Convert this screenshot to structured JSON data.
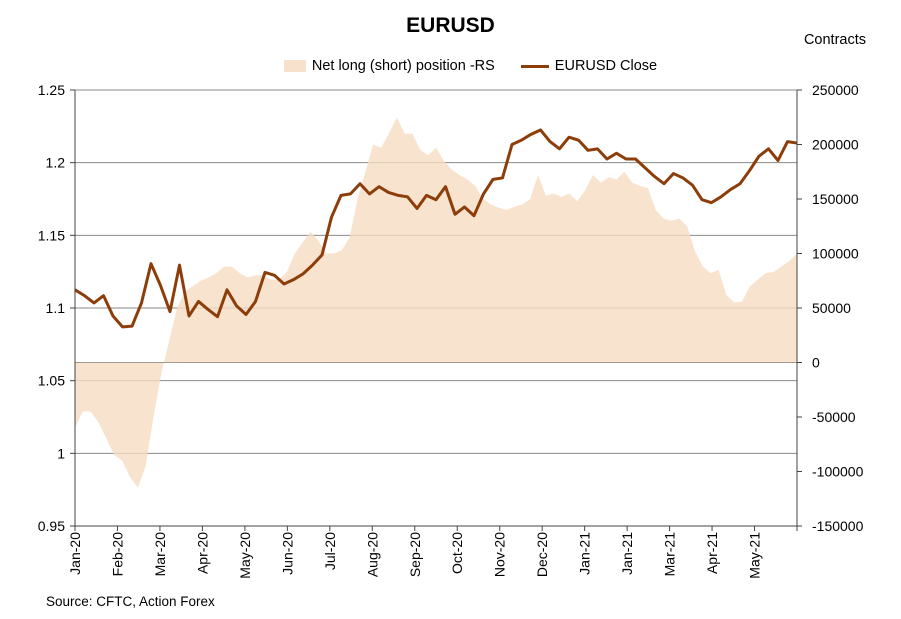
{
  "chart_data": {
    "type": "line",
    "title": "EURUSD",
    "right_axis_title": "Contracts",
    "source": "Source: CFTC, Action Forex",
    "legend_position": "top-center",
    "y_left": {
      "min": 0.95,
      "max": 1.25,
      "ticks": [
        "1.25",
        "1.2",
        "1.15",
        "1.1",
        "1.05",
        "1",
        "0.95"
      ]
    },
    "y_right": {
      "min": -150000,
      "max": 250000,
      "ticks": [
        "250000",
        "200000",
        "150000",
        "100000",
        "50000",
        "0",
        "-50000",
        "-100000",
        "-150000"
      ]
    },
    "x_tick_labels": [
      "Jan-20",
      "Feb-20",
      "Mar-20",
      "Apr-20",
      "May-20",
      "Jun-20",
      "Jul-20",
      "Aug-20",
      "Sep-20",
      "Oct-20",
      "Nov-20",
      "Dec-20",
      "Jan-21",
      "Jan-21",
      "Mar-21",
      "Apr-21",
      "May-21"
    ],
    "series": [
      {
        "name": "Net long (short) position -RS",
        "kind": "area",
        "axis": "right",
        "color": "#f6dcc3",
        "values": [
          -60000,
          -45000,
          -45000,
          -55000,
          -70000,
          -85000,
          -90000,
          -105000,
          -115000,
          -95000,
          -50000,
          -10000,
          20000,
          50000,
          65000,
          70000,
          75000,
          78000,
          82000,
          88000,
          88000,
          82000,
          78000,
          80000,
          80000,
          76000,
          76000,
          83000,
          100000,
          110000,
          120000,
          112000,
          100000,
          100000,
          103000,
          115000,
          150000,
          175000,
          200000,
          197000,
          210000,
          225000,
          210000,
          210000,
          195000,
          190000,
          197000,
          185000,
          177000,
          172000,
          168000,
          162000,
          150000,
          145000,
          142000,
          140000,
          143000,
          145000,
          150000,
          172000,
          153000,
          155000,
          152000,
          155000,
          148000,
          158000,
          172000,
          165000,
          170000,
          168000,
          175000,
          165000,
          162000,
          160000,
          140000,
          132000,
          130000,
          132000,
          125000,
          102000,
          88000,
          82000,
          85000,
          62000,
          55000,
          56000,
          70000,
          76000,
          82000,
          83000,
          88000,
          93000,
          100000
        ]
      },
      {
        "name": "EURUSD Close",
        "kind": "line",
        "axis": "left",
        "color": "#8c3d0a",
        "values": [
          1.1125,
          1.1085,
          1.1035,
          1.1085,
          1.0945,
          1.087,
          1.0875,
          1.1035,
          1.1305,
          1.1155,
          1.0975,
          1.1295,
          1.0945,
          1.1045,
          1.099,
          1.094,
          1.1125,
          1.1015,
          1.0955,
          1.1045,
          1.1245,
          1.1225,
          1.1165,
          1.1195,
          1.1235,
          1.1295,
          1.1365,
          1.1625,
          1.1775,
          1.1785,
          1.1855,
          1.1785,
          1.1835,
          1.1795,
          1.1775,
          1.1765,
          1.1685,
          1.1775,
          1.1745,
          1.1835,
          1.1645,
          1.1695,
          1.1635,
          1.1785,
          1.1885,
          1.1895,
          1.2125,
          1.2155,
          1.2195,
          1.2225,
          1.2145,
          1.2095,
          1.2175,
          1.2155,
          1.2085,
          1.2095,
          1.2025,
          1.2065,
          1.2025,
          1.2025,
          1.1965,
          1.1905,
          1.1855,
          1.1925,
          1.1895,
          1.1845,
          1.1745,
          1.1725,
          1.1765,
          1.1815,
          1.1855,
          1.1945,
          1.2045,
          1.2095,
          1.2015,
          1.2145,
          1.2135
        ]
      }
    ]
  }
}
